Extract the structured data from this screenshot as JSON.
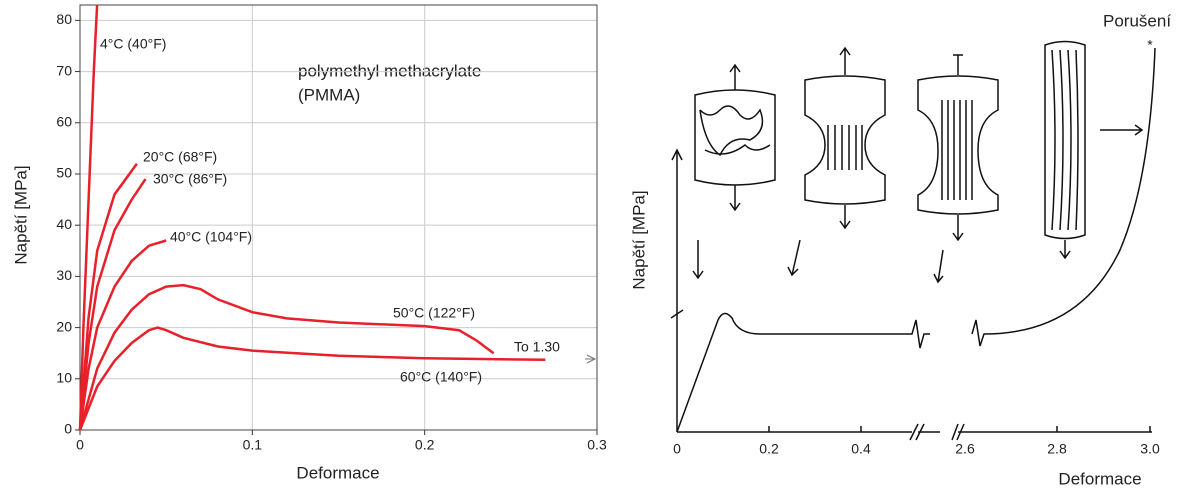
{
  "chart_data": {
    "type": "line",
    "x_label": "Deformace",
    "y_label": "Napětí [MPa]",
    "annotation": [
      "polymethyl methacrylate",
      "(PMMA)"
    ],
    "arrow_note": "To 1.30",
    "xlim": [
      0,
      0.3
    ],
    "ylim": [
      0,
      83
    ],
    "xticks": [
      0,
      0.1,
      0.2,
      0.3
    ],
    "yticks": [
      0,
      10,
      20,
      30,
      40,
      50,
      60,
      70,
      80
    ],
    "grid": true,
    "series": [
      {
        "name": "4°C (40°F)",
        "color": "#e8202a",
        "x": [
          0,
          0.002,
          0.005,
          0.008,
          0.0099
        ],
        "values": [
          0,
          20,
          45,
          70,
          83
        ]
      },
      {
        "name": "20°C (68°F)",
        "color": "#e8202a",
        "x": [
          0,
          0.005,
          0.01,
          0.02,
          0.033
        ],
        "values": [
          0,
          22,
          35,
          46,
          52
        ]
      },
      {
        "name": "30°C (86°F)",
        "color": "#e8202a",
        "x": [
          0,
          0.005,
          0.01,
          0.02,
          0.03,
          0.038
        ],
        "values": [
          0,
          17,
          28,
          39,
          45,
          49
        ]
      },
      {
        "name": "40°C (104°F)",
        "color": "#e8202a",
        "x": [
          0,
          0.005,
          0.01,
          0.02,
          0.03,
          0.04,
          0.05
        ],
        "values": [
          0,
          12,
          20,
          28,
          33,
          36,
          37
        ]
      },
      {
        "name": "50°C (122°F)",
        "color": "#e8202a",
        "x": [
          0,
          0.01,
          0.02,
          0.03,
          0.04,
          0.05,
          0.06,
          0.07,
          0.08,
          0.1,
          0.12,
          0.15,
          0.2,
          0.22,
          0.23,
          0.24
        ],
        "values": [
          0,
          12,
          19,
          23.5,
          26.5,
          28,
          28.3,
          27.5,
          25.5,
          23,
          21.8,
          21,
          20.3,
          19.5,
          17.5,
          15
        ]
      },
      {
        "name": "60°C (140°F)",
        "color": "#e8202a",
        "x": [
          0,
          0.01,
          0.02,
          0.03,
          0.04,
          0.045,
          0.05,
          0.06,
          0.08,
          0.1,
          0.15,
          0.2,
          0.27
        ],
        "values": [
          0,
          8.5,
          13.5,
          17,
          19.5,
          20,
          19.5,
          18,
          16.3,
          15.5,
          14.5,
          14,
          13.7
        ]
      }
    ]
  },
  "schematic": {
    "y_label": "Napětí [MPa]",
    "x_label": "Deformace",
    "break_label": "Porušení",
    "tick_labels": [
      "0",
      "0.2",
      "0.4",
      "2.6",
      "2.8",
      "3.0"
    ]
  }
}
